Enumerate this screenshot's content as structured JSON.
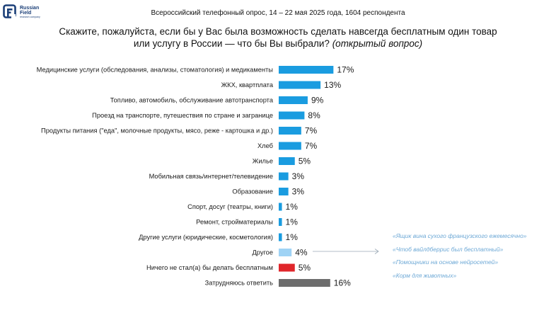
{
  "header": {
    "logo_line1": "Russian",
    "logo_line2": "Field",
    "logo_sub": "research company",
    "survey_info": "Всероссийский телефонный опрос, 14 – 22 мая 2025 года, 1604 респондента"
  },
  "question": {
    "line1": "Скажите, пожалуйста, если бы у Вас была возможность сделать навсегда бесплатным один товар",
    "line2": "или услугу в России — что бы Вы выбрали?",
    "note": "(открытый вопрос)"
  },
  "colors": {
    "bar_main": "#1a9ce0",
    "bar_other": "#9fd3f5",
    "bar_nothing": "#e0262b",
    "bar_dk": "#6d6d6d",
    "quote_text": "#6ea9d6"
  },
  "chart_data": {
    "type": "bar",
    "orientation": "horizontal",
    "categories": [
      "Медицинские услуги (обследования, анализы, стоматология) и медикаменты",
      "ЖКХ, квартплата",
      "Топливо, автомобиль, обслуживание автотранспорта",
      "Проезд на транспорте, путешествия по стране и загранице",
      "Продукты питания (\"еда\", молочные продукты, мясо, реже - картошка и др.)",
      "Хлеб",
      "Жилье",
      "Мобильная связь/интернет/телевидение",
      "Образование",
      "Спорт, досуг (театры, книги)",
      "Ремонт, стройматериалы",
      "Другие услуги (юридические, косметология)",
      "Другое",
      "Ничего не стал(а) бы делать бесплатным",
      "Затрудняюсь ответить"
    ],
    "values": [
      17,
      13,
      9,
      8,
      7,
      7,
      5,
      3,
      3,
      1,
      1,
      1,
      4,
      5,
      16
    ],
    "value_labels": [
      "17%",
      "13%",
      "9%",
      "8%",
      "7%",
      "7%",
      "5%",
      "3%",
      "3%",
      "1%",
      "1%",
      "1%",
      "4%",
      "5%",
      "16%"
    ],
    "bar_colors": [
      "#1a9ce0",
      "#1a9ce0",
      "#1a9ce0",
      "#1a9ce0",
      "#1a9ce0",
      "#1a9ce0",
      "#1a9ce0",
      "#1a9ce0",
      "#1a9ce0",
      "#1a9ce0",
      "#1a9ce0",
      "#1a9ce0",
      "#9fd3f5",
      "#e0262b",
      "#6d6d6d"
    ],
    "xlim": [
      0,
      20
    ],
    "grid": false,
    "legend": false,
    "annotations": [
      "«Ящик вина сухого французского ежемесячно»",
      "«Чтоб вайлдберрис был бесплатный»",
      "«Помощники на основе нейросетей»",
      "«Корм для животных»"
    ]
  }
}
